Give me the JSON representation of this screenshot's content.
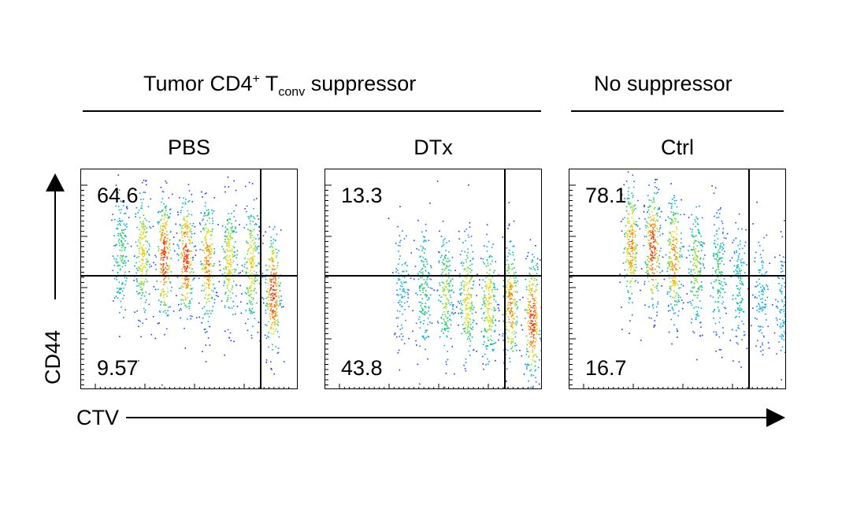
{
  "group_titles": {
    "suppressed_main": "Tumor CD4",
    "suppressed_sup": "+",
    "suppressed_T": "T",
    "suppressed_sub": "conv",
    "suppressed_tail": " suppressor",
    "no_suppressor": "No suppressor"
  },
  "axes": {
    "y_label": "CD44",
    "x_label": "CTV"
  },
  "chart_data": [
    {
      "type": "scatter",
      "title": "PBS",
      "quadrant_percent": {
        "upper_left": "64.6",
        "lower_left": "9.57"
      },
      "peaks_x": [
        0.18,
        0.28,
        0.38,
        0.48,
        0.58,
        0.68,
        0.78,
        0.88
      ],
      "peaks_weight": [
        0.6,
        0.8,
        1.0,
        1.0,
        0.9,
        0.8,
        0.8,
        1.0
      ],
      "peaks_y_center": [
        0.62,
        0.62,
        0.6,
        0.6,
        0.58,
        0.58,
        0.57,
        0.44
      ]
    },
    {
      "type": "scatter",
      "title": "DTx",
      "quadrant_percent": {
        "upper_left": "13.3",
        "lower_left": "43.8"
      },
      "peaks_x": [
        0.35,
        0.45,
        0.55,
        0.65,
        0.75,
        0.85,
        0.95
      ],
      "peaks_weight": [
        0.4,
        0.6,
        0.7,
        0.8,
        0.8,
        0.9,
        1.0
      ],
      "peaks_y_center": [
        0.48,
        0.46,
        0.44,
        0.42,
        0.4,
        0.38,
        0.32
      ]
    },
    {
      "type": "scatter",
      "title": "Ctrl",
      "quadrant_percent": {
        "upper_left": "78.1",
        "lower_left": "16.7"
      },
      "peaks_x": [
        0.28,
        0.38,
        0.48,
        0.58,
        0.68,
        0.78,
        0.88,
        0.98
      ],
      "peaks_weight": [
        0.9,
        1.0,
        0.9,
        0.7,
        0.6,
        0.5,
        0.4,
        0.4
      ],
      "peaks_y_center": [
        0.66,
        0.64,
        0.6,
        0.56,
        0.52,
        0.48,
        0.45,
        0.38
      ]
    }
  ],
  "colors": {
    "low": "#1a1aff",
    "mid": "#00c070",
    "high": "#ff2000",
    "gate": "#000000"
  }
}
